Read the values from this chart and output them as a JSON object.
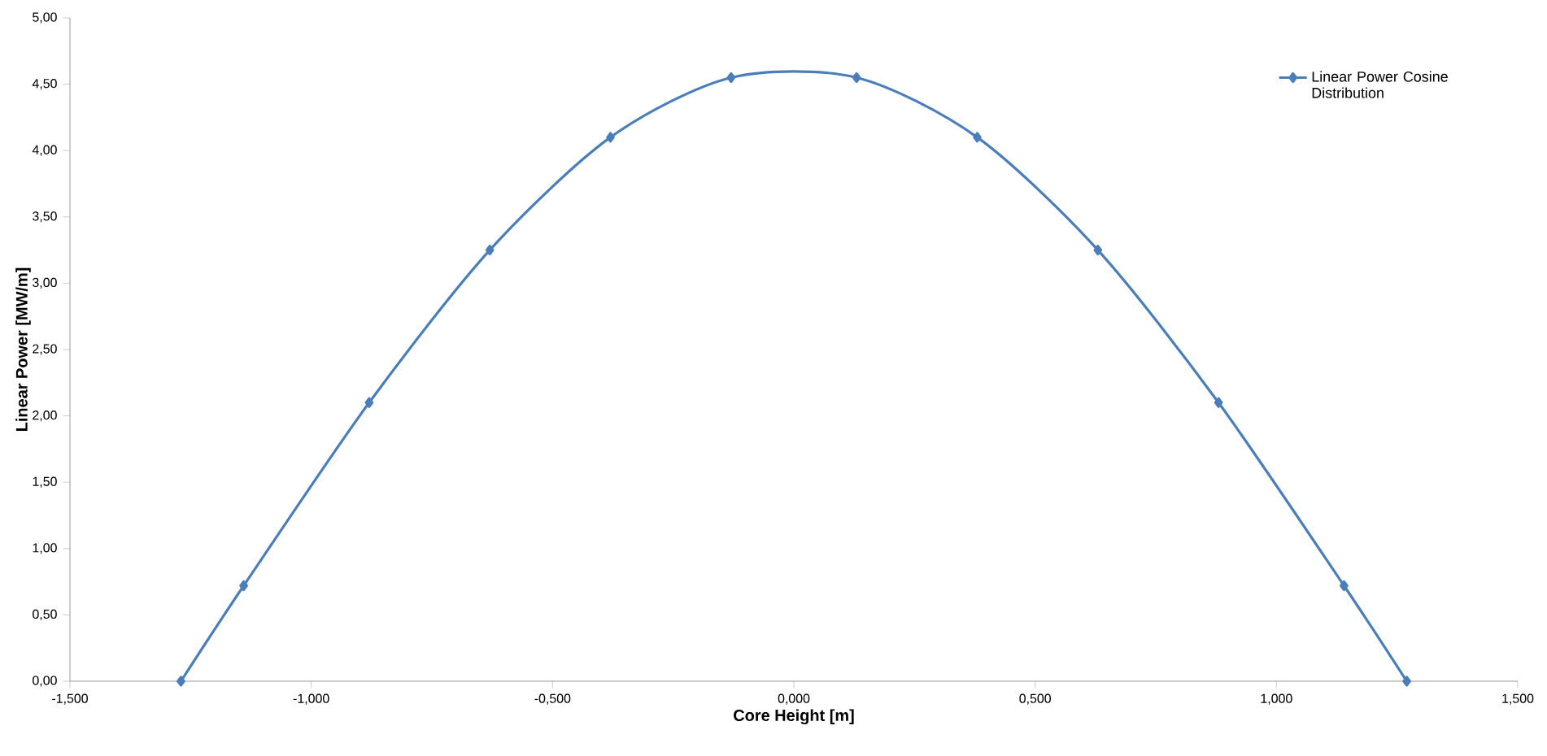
{
  "chart_data": {
    "type": "line",
    "xlabel": "Core Height [m]",
    "ylabel": "Linear Power [MW/m]",
    "series": [
      {
        "name": "Linear Power Cosine Distribution",
        "color": "#4a7ebb",
        "x": [
          -1.27,
          -1.14,
          -0.88,
          -0.63,
          -0.38,
          -0.13,
          0.13,
          0.38,
          0.63,
          0.88,
          1.14,
          1.27
        ],
        "values": [
          0,
          0.72,
          2.1,
          3.25,
          4.1,
          4.55,
          4.55,
          4.1,
          3.25,
          2.1,
          0.72,
          0
        ]
      }
    ],
    "xlim": [
      -1.5,
      1.5
    ],
    "xticks": [
      {
        "value": -1.5,
        "label": "-1,500"
      },
      {
        "value": -1,
        "label": "-1,000"
      },
      {
        "value": -0.5,
        "label": "-0,500"
      },
      {
        "value": 0,
        "label": "0,000"
      },
      {
        "value": 0.5,
        "label": "0,500"
      },
      {
        "value": 1,
        "label": "1,000"
      },
      {
        "value": 1.5,
        "label": "1,500"
      }
    ],
    "ylim": [
      0,
      5
    ],
    "yticks": [
      {
        "value": 0,
        "label": "0,00"
      },
      {
        "value": 0.5,
        "label": "0,50"
      },
      {
        "value": 1,
        "label": "1,00"
      },
      {
        "value": 1.5,
        "label": "1,50"
      },
      {
        "value": 2,
        "label": "2,00"
      },
      {
        "value": 2.5,
        "label": "2,50"
      },
      {
        "value": 3,
        "label": "3,00"
      },
      {
        "value": 3.5,
        "label": "3,50"
      },
      {
        "value": 4,
        "label": "4,00"
      },
      {
        "value": 4.5,
        "label": "4,50"
      },
      {
        "value": 5,
        "label": "5,00"
      }
    ],
    "legend": "top right",
    "marker": "diamond",
    "line_style": "solid"
  }
}
